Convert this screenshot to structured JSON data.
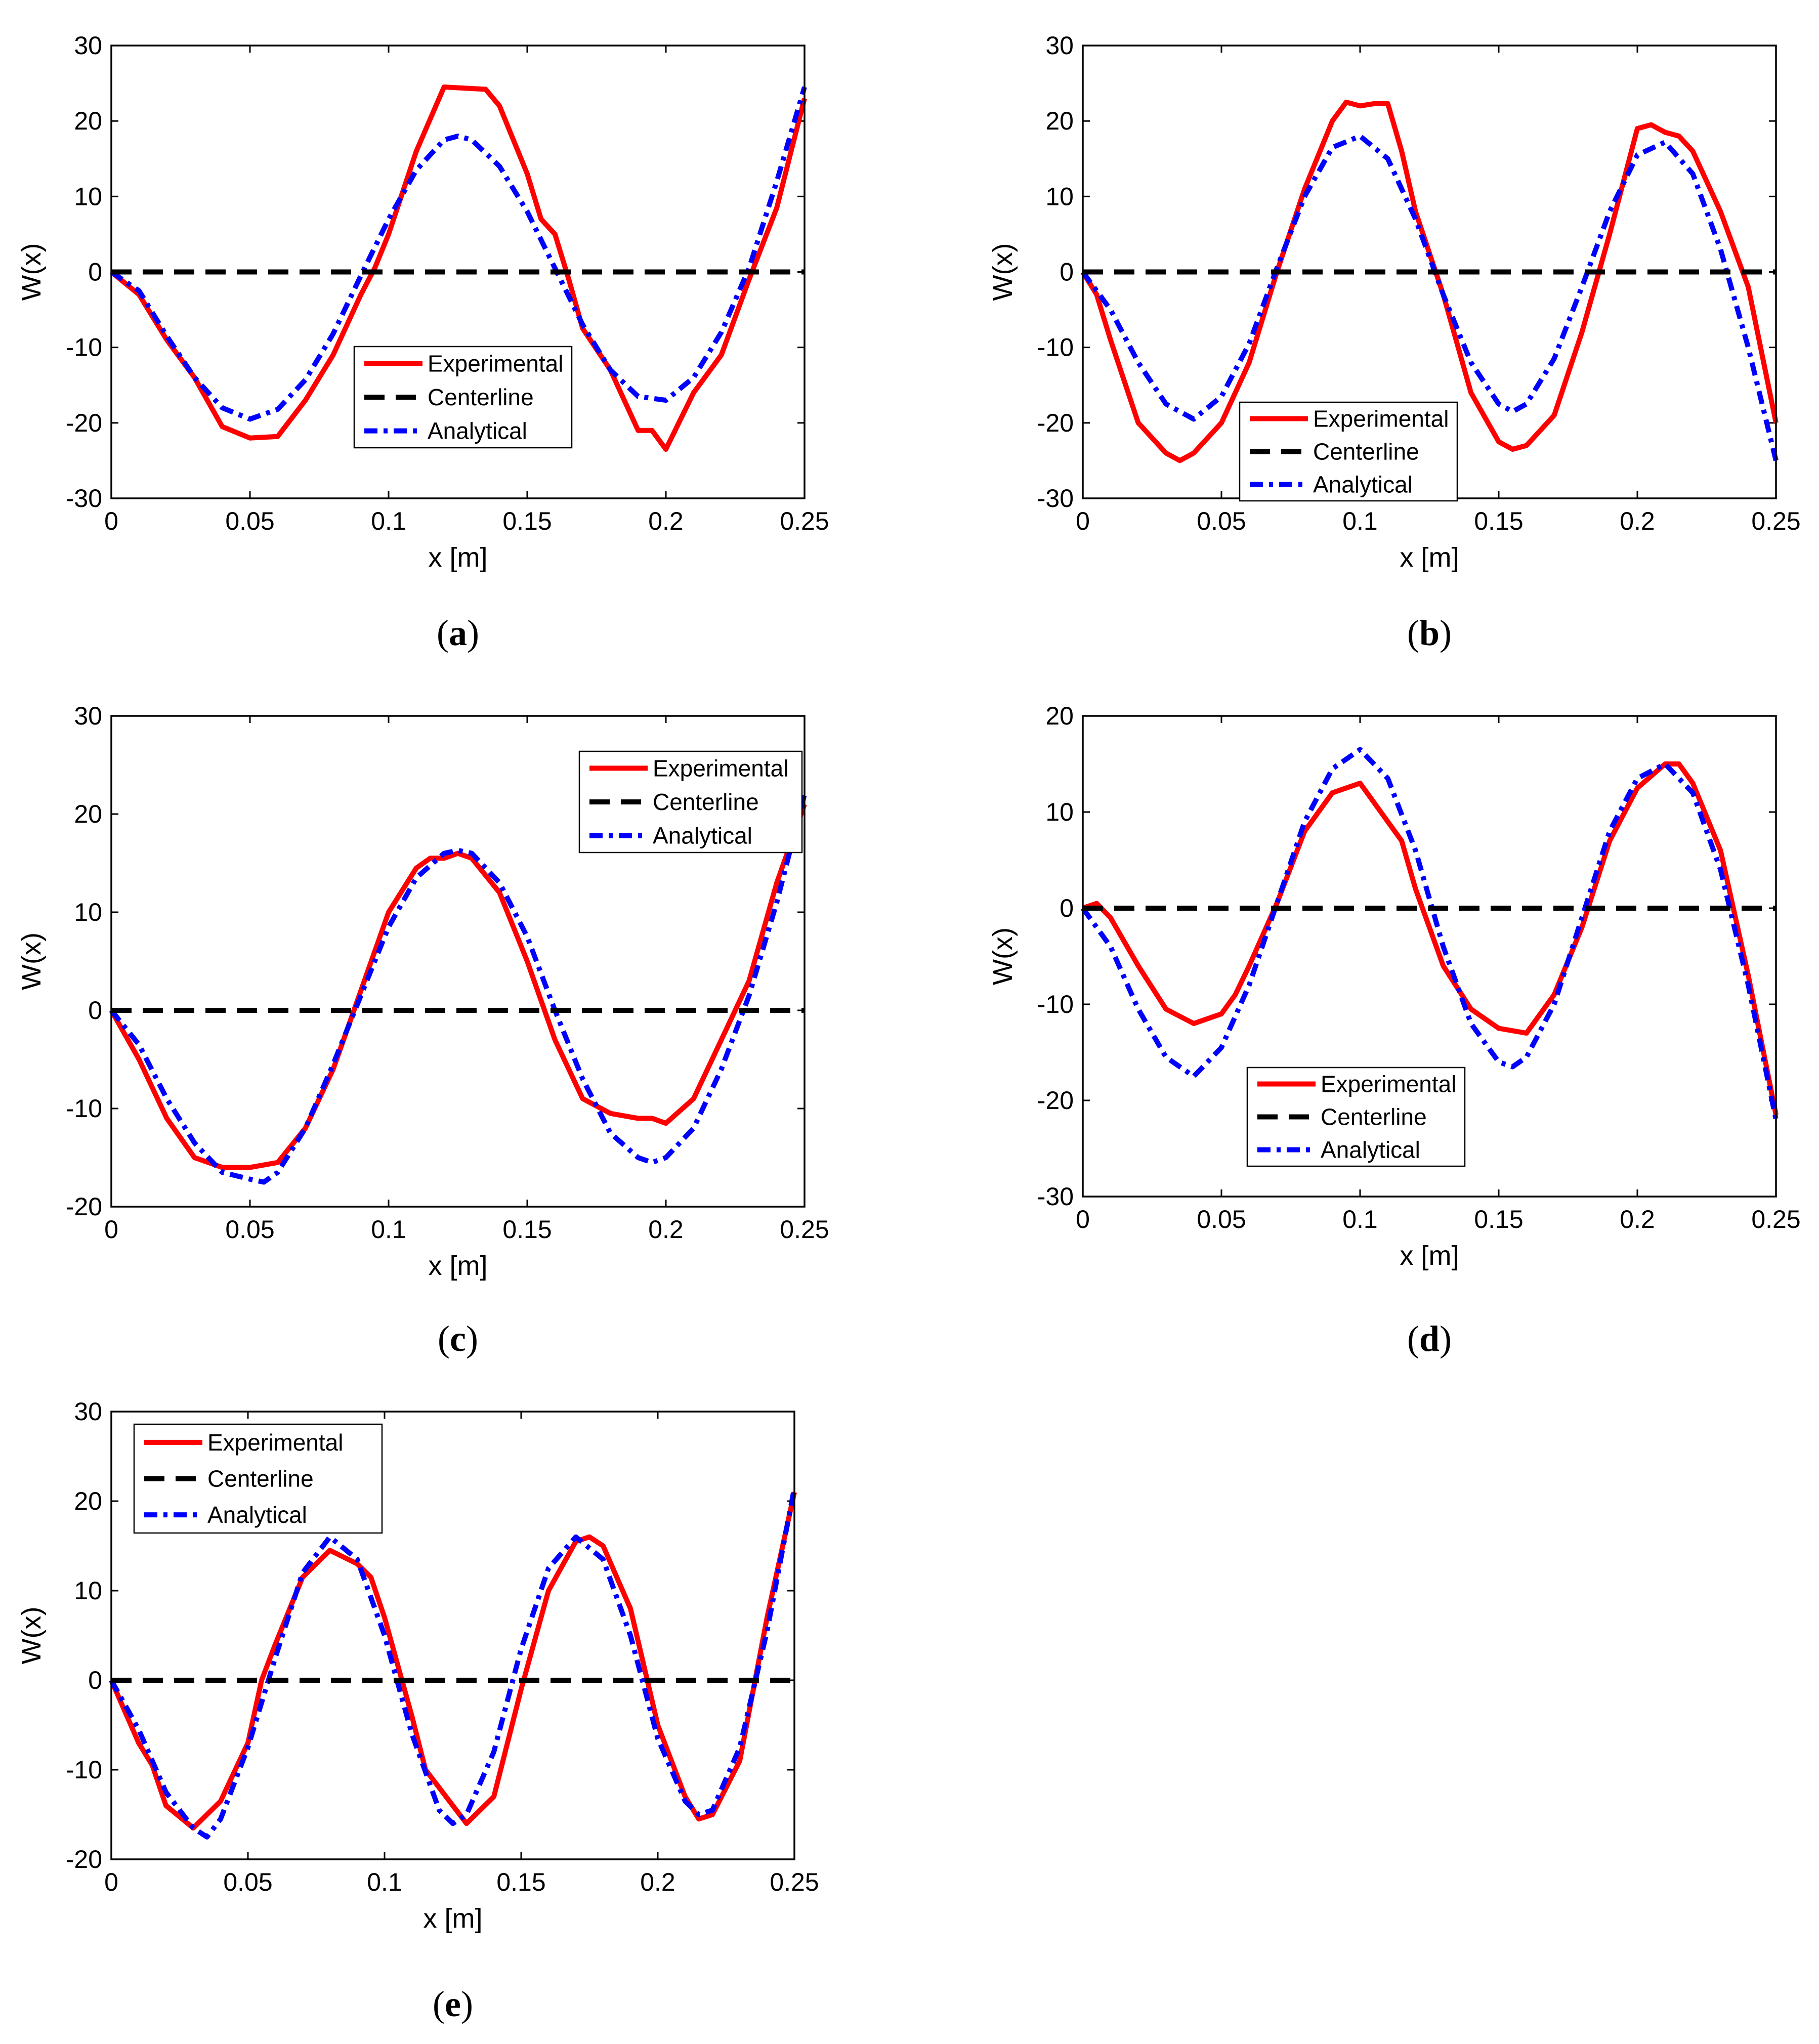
{
  "figure": {
    "title": "",
    "colors": {
      "experimental": "#ff0000",
      "centerline": "#000000",
      "analytical": "#0000ff"
    }
  },
  "chart_data": [
    {
      "type": "line",
      "panel": "a",
      "caption": "a",
      "xlabel": "x [m]",
      "ylabel": "W(x)",
      "xlim": [
        0,
        0.25
      ],
      "ylim": [
        -30,
        30
      ],
      "xticks": [
        "0",
        "0.05",
        "0.1",
        "0.15",
        "0.2",
        "0.25"
      ],
      "yticks": [
        "-30",
        "-20",
        "-10",
        "0",
        "10",
        "20",
        "30"
      ],
      "legend_position": "bottom-center",
      "series": [
        {
          "name": "Experimental",
          "style": "solid",
          "color": "#ff0000",
          "x": [
            0,
            0.01,
            0.02,
            0.03,
            0.04,
            0.05,
            0.06,
            0.07,
            0.08,
            0.09,
            0.095,
            0.1,
            0.11,
            0.12,
            0.13,
            0.135,
            0.14,
            0.15,
            0.155,
            0.16,
            0.165,
            0.17,
            0.18,
            0.19,
            0.195,
            0.2,
            0.21,
            0.22,
            0.23,
            0.24,
            0.25
          ],
          "y": [
            0,
            -3,
            -9,
            -14,
            -20.5,
            -22,
            -21.8,
            -17,
            -11,
            -3,
            0.5,
            5,
            16,
            24.5,
            24.3,
            24.2,
            22,
            13,
            7,
            5,
            -1,
            -7.5,
            -13,
            -21,
            -21,
            -23.5,
            -16,
            -11,
            -1,
            8.5,
            23
          ]
        },
        {
          "name": "Centerline",
          "style": "dashed",
          "color": "#000000",
          "x": [
            0,
            0.25
          ],
          "y": [
            0,
            0
          ]
        },
        {
          "name": "Analytical",
          "style": "dashdot",
          "color": "#0000ff",
          "x": [
            0,
            0.01,
            0.02,
            0.03,
            0.04,
            0.05,
            0.06,
            0.07,
            0.08,
            0.09,
            0.1,
            0.11,
            0.12,
            0.125,
            0.13,
            0.14,
            0.15,
            0.16,
            0.17,
            0.18,
            0.19,
            0.2,
            0.21,
            0.22,
            0.23,
            0.24,
            0.25
          ],
          "y": [
            0,
            -2.5,
            -8.5,
            -14,
            -18,
            -19.5,
            -18.2,
            -14.3,
            -8.2,
            -0.5,
            7,
            13.5,
            17.5,
            18,
            17.5,
            14,
            8,
            0.5,
            -7,
            -13,
            -16.5,
            -17,
            -14,
            -8,
            0.5,
            12,
            24.5
          ]
        }
      ]
    },
    {
      "type": "line",
      "panel": "b",
      "caption": "b",
      "xlabel": "x [m]",
      "ylabel": "W(x)",
      "xlim": [
        0,
        0.25
      ],
      "ylim": [
        -30,
        30
      ],
      "xticks": [
        "0",
        "0.05",
        "0.1",
        "0.15",
        "0.2",
        "0.25"
      ],
      "yticks": [
        "-30",
        "-20",
        "-10",
        "0",
        "10",
        "20",
        "30"
      ],
      "legend_position": "bottom-right",
      "series": [
        {
          "name": "Experimental",
          "style": "solid",
          "color": "#ff0000",
          "x": [
            0,
            0.005,
            0.01,
            0.02,
            0.03,
            0.035,
            0.04,
            0.05,
            0.06,
            0.07,
            0.08,
            0.09,
            0.095,
            0.1,
            0.105,
            0.11,
            0.115,
            0.12,
            0.13,
            0.14,
            0.15,
            0.155,
            0.16,
            0.17,
            0.18,
            0.19,
            0.2,
            0.205,
            0.21,
            0.215,
            0.22,
            0.23,
            0.24,
            0.25
          ],
          "y": [
            0,
            -3,
            -9,
            -20,
            -24,
            -25,
            -24,
            -20,
            -12,
            0,
            11,
            20,
            22.5,
            22,
            22.3,
            22.3,
            16,
            8,
            -3,
            -16,
            -22.5,
            -23.5,
            -23,
            -19,
            -8,
            5,
            19,
            19.5,
            18.5,
            18,
            16,
            8,
            -2,
            -20
          ]
        },
        {
          "name": "Centerline",
          "style": "dashed",
          "color": "#000000",
          "x": [
            0,
            0.25
          ],
          "y": [
            0,
            0
          ]
        },
        {
          "name": "Analytical",
          "style": "dashdot",
          "color": "#0000ff",
          "x": [
            0,
            0.01,
            0.02,
            0.03,
            0.04,
            0.05,
            0.06,
            0.07,
            0.08,
            0.09,
            0.1,
            0.11,
            0.12,
            0.13,
            0.14,
            0.15,
            0.155,
            0.16,
            0.17,
            0.18,
            0.19,
            0.2,
            0.21,
            0.22,
            0.23,
            0.24,
            0.25
          ],
          "y": [
            0,
            -5,
            -12,
            -17.5,
            -19.5,
            -16.5,
            -9.5,
            0.5,
            10,
            16.5,
            18,
            15,
            7,
            -3,
            -12,
            -17.5,
            -18.5,
            -17.5,
            -11.5,
            -2,
            8,
            15.5,
            17.2,
            13,
            3,
            -10,
            -25
          ]
        }
      ]
    },
    {
      "type": "line",
      "panel": "c",
      "caption": "c",
      "xlabel": "x [m]",
      "ylabel": "W(x)",
      "xlim": [
        0,
        0.25
      ],
      "ylim": [
        -20,
        30
      ],
      "xticks": [
        "0",
        "0.05",
        "0.1",
        "0.15",
        "0.2",
        "0.25"
      ],
      "yticks": [
        "-20",
        "-10",
        "0",
        "10",
        "20",
        "30"
      ],
      "legend_position": "top-right",
      "series": [
        {
          "name": "Experimental",
          "style": "solid",
          "color": "#ff0000",
          "x": [
            0,
            0.01,
            0.02,
            0.03,
            0.04,
            0.05,
            0.06,
            0.07,
            0.075,
            0.08,
            0.09,
            0.1,
            0.11,
            0.115,
            0.12,
            0.125,
            0.13,
            0.14,
            0.15,
            0.16,
            0.17,
            0.18,
            0.19,
            0.195,
            0.2,
            0.21,
            0.22,
            0.23,
            0.24,
            0.25
          ],
          "y": [
            0,
            -5,
            -11,
            -15,
            -16,
            -16,
            -15.5,
            -12,
            -9,
            -6,
            2,
            10,
            14.5,
            15.5,
            15.5,
            16,
            15.5,
            12,
            5,
            -3,
            -9,
            -10.5,
            -11,
            -11,
            -11.5,
            -9,
            -3,
            3,
            13,
            21
          ]
        },
        {
          "name": "Centerline",
          "style": "dashed",
          "color": "#000000",
          "x": [
            0,
            0.25
          ],
          "y": [
            0,
            0
          ]
        },
        {
          "name": "Analytical",
          "style": "dashdot",
          "color": "#0000ff",
          "x": [
            0,
            0.01,
            0.02,
            0.03,
            0.04,
            0.05,
            0.055,
            0.06,
            0.07,
            0.08,
            0.09,
            0.1,
            0.11,
            0.12,
            0.125,
            0.13,
            0.14,
            0.15,
            0.16,
            0.17,
            0.18,
            0.19,
            0.195,
            0.2,
            0.21,
            0.22,
            0.23,
            0.24,
            0.25
          ],
          "y": [
            0,
            -3.5,
            -9,
            -13.5,
            -16.5,
            -17.2,
            -17.5,
            -16.5,
            -12,
            -5.5,
            1.5,
            8.5,
            13.5,
            16,
            16.3,
            16,
            13,
            7.5,
            0,
            -7,
            -12.5,
            -15,
            -15.5,
            -15,
            -12,
            -6,
            1.5,
            11,
            22
          ]
        }
      ]
    },
    {
      "type": "line",
      "panel": "d",
      "caption": "d",
      "xlabel": "x [m]",
      "ylabel": "W(x)",
      "xlim": [
        0,
        0.25
      ],
      "ylim": [
        -30,
        20
      ],
      "xticks": [
        "0",
        "0.05",
        "0.1",
        "0.15",
        "0.2",
        "0.25"
      ],
      "yticks": [
        "-30",
        "-20",
        "-10",
        "0",
        "10",
        "20"
      ],
      "legend_position": "bottom-left",
      "series": [
        {
          "name": "Experimental",
          "style": "solid",
          "color": "#ff0000",
          "x": [
            0,
            0.005,
            0.01,
            0.02,
            0.03,
            0.04,
            0.05,
            0.055,
            0.06,
            0.07,
            0.08,
            0.09,
            0.1,
            0.11,
            0.115,
            0.12,
            0.13,
            0.14,
            0.15,
            0.16,
            0.17,
            0.18,
            0.19,
            0.2,
            0.21,
            0.215,
            0.22,
            0.23,
            0.24,
            0.25
          ],
          "y": [
            0,
            0.5,
            -1,
            -6,
            -10.5,
            -12,
            -11,
            -9,
            -6,
            0.5,
            8,
            12,
            13,
            9,
            7,
            2,
            -6,
            -10.5,
            -12.5,
            -13,
            -9,
            -2,
            7,
            12.5,
            15,
            15,
            13,
            6,
            -7,
            -21.5
          ]
        },
        {
          "name": "Centerline",
          "style": "dashed",
          "color": "#000000",
          "x": [
            0,
            0.25
          ],
          "y": [
            0,
            0
          ]
        },
        {
          "name": "Analytical",
          "style": "dashdot",
          "color": "#0000ff",
          "x": [
            0,
            0.01,
            0.02,
            0.03,
            0.04,
            0.05,
            0.06,
            0.07,
            0.08,
            0.09,
            0.1,
            0.11,
            0.12,
            0.13,
            0.14,
            0.15,
            0.155,
            0.16,
            0.17,
            0.18,
            0.19,
            0.2,
            0.21,
            0.22,
            0.23,
            0.24,
            0.25
          ],
          "y": [
            0,
            -4,
            -10.5,
            -15.5,
            -17.5,
            -14.5,
            -8,
            0.5,
            9,
            14.5,
            16.5,
            13.5,
            6,
            -4,
            -12,
            -16,
            -16.5,
            -15.5,
            -10,
            -1,
            8,
            13.5,
            15,
            12,
            4,
            -8,
            -22
          ]
        }
      ]
    },
    {
      "type": "line",
      "panel": "e",
      "caption": "e",
      "xlabel": "x [m]",
      "ylabel": "W(x)",
      "xlim": [
        0,
        0.25
      ],
      "ylim": [
        -20,
        30
      ],
      "xticks": [
        "0",
        "0.05",
        "0.1",
        "0.15",
        "0.2",
        "0.25"
      ],
      "yticks": [
        "-20",
        "-10",
        "0",
        "10",
        "20",
        "30"
      ],
      "legend_position": "top-left",
      "series": [
        {
          "name": "Experimental",
          "style": "solid",
          "color": "#ff0000",
          "x": [
            0,
            0.01,
            0.015,
            0.02,
            0.03,
            0.04,
            0.05,
            0.055,
            0.06,
            0.07,
            0.08,
            0.09,
            0.095,
            0.1,
            0.11,
            0.115,
            0.12,
            0.125,
            0.13,
            0.14,
            0.15,
            0.16,
            0.17,
            0.175,
            0.18,
            0.19,
            0.2,
            0.21,
            0.215,
            0.22,
            0.23,
            0.24,
            0.25
          ],
          "y": [
            0,
            -7,
            -9.5,
            -14,
            -16.5,
            -13.5,
            -7,
            0,
            4,
            11.5,
            14.5,
            13,
            11.5,
            7,
            -4,
            -10,
            -12,
            -14,
            -16,
            -13,
            -1,
            10,
            15.5,
            16,
            15,
            8,
            -5,
            -13,
            -15.5,
            -15,
            -9,
            7,
            21
          ]
        },
        {
          "name": "Centerline",
          "style": "dashed",
          "color": "#000000",
          "x": [
            0,
            0.25
          ],
          "y": [
            0,
            0
          ]
        },
        {
          "name": "Analytical",
          "style": "dashdot",
          "color": "#0000ff",
          "x": [
            0,
            0.01,
            0.02,
            0.03,
            0.035,
            0.04,
            0.05,
            0.06,
            0.07,
            0.08,
            0.09,
            0.1,
            0.11,
            0.12,
            0.125,
            0.13,
            0.14,
            0.15,
            0.16,
            0.17,
            0.18,
            0.19,
            0.2,
            0.21,
            0.215,
            0.22,
            0.23,
            0.24,
            0.25
          ],
          "y": [
            0,
            -5.5,
            -12.5,
            -16.5,
            -17.5,
            -15.5,
            -7.5,
            2.5,
            12,
            16,
            13.5,
            5,
            -6,
            -14.5,
            -16,
            -15,
            -8,
            3.5,
            12.5,
            16,
            13.5,
            5,
            -6.5,
            -13.5,
            -15,
            -14.5,
            -7.5,
            5.5,
            21.5
          ]
        }
      ]
    }
  ]
}
